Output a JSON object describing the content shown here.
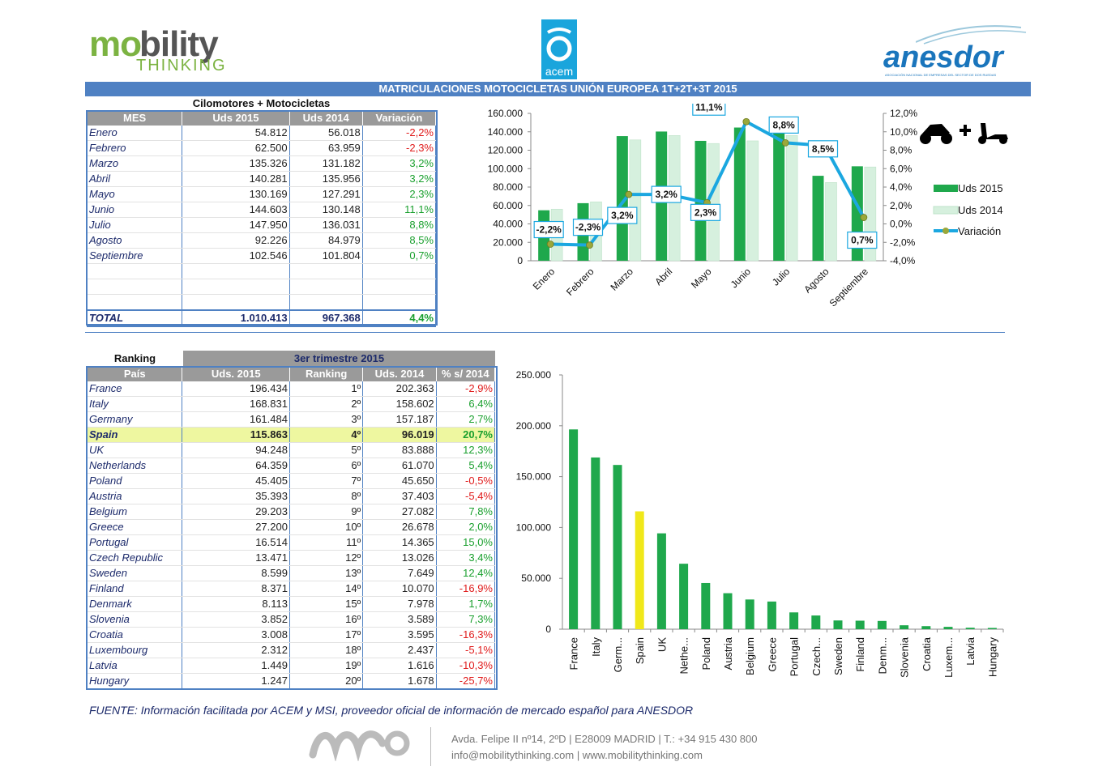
{
  "header": {
    "logo_left": {
      "part_a": "mo",
      "part_b": "bility",
      "line2": "THINKING"
    },
    "logo_center": {
      "text": "acem"
    },
    "logo_right": {
      "text": "anesdor",
      "subtitle": "ASOCIACIÓN NACIONAL DE EMPRESAS DEL SECTOR DE DOS RUEDAS"
    },
    "banner": "MATRICULACIONES MOTOCICLETAS UNIÓN EUROPEA 1T+2T+3T 2015"
  },
  "monthly_table": {
    "caption": "Cilomotores + Motocicletas",
    "headers": [
      "MES",
      "Uds 2015",
      "Uds 2014",
      "Variación"
    ],
    "rows": [
      {
        "mes": "Enero",
        "u2015": "54.812",
        "u2014": "56.018",
        "var": "-2,2%",
        "neg": true
      },
      {
        "mes": "Febrero",
        "u2015": "62.500",
        "u2014": "63.959",
        "var": "-2,3%",
        "neg": true
      },
      {
        "mes": "Marzo",
        "u2015": "135.326",
        "u2014": "131.182",
        "var": "3,2%",
        "neg": false
      },
      {
        "mes": "Abril",
        "u2015": "140.281",
        "u2014": "135.956",
        "var": "3,2%",
        "neg": false
      },
      {
        "mes": "Mayo",
        "u2015": "130.169",
        "u2014": "127.291",
        "var": "2,3%",
        "neg": false
      },
      {
        "mes": "Junio",
        "u2015": "144.603",
        "u2014": "130.148",
        "var": "11,1%",
        "neg": false
      },
      {
        "mes": "Julio",
        "u2015": "147.950",
        "u2014": "136.031",
        "var": "8,8%",
        "neg": false
      },
      {
        "mes": "Agosto",
        "u2015": "92.226",
        "u2014": "84.979",
        "var": "8,5%",
        "neg": false
      },
      {
        "mes": "Septiembre",
        "u2015": "102.546",
        "u2014": "101.804",
        "var": "0,7%",
        "neg": false
      }
    ],
    "total": {
      "label": "TOTAL",
      "u2015": "1.010.413",
      "u2014": "967.368",
      "var": "4,4%"
    }
  },
  "ranking_table": {
    "caption_left": "Ranking",
    "caption_right": "3er trimestre 2015",
    "headers": [
      "País",
      "Uds. 2015",
      "Ranking",
      "Uds. 2014",
      "% s/ 2014"
    ],
    "rows": [
      {
        "pais": "France",
        "u2015": "196.434",
        "rank": "1º",
        "u2014": "202.363",
        "pct": "-2,9%",
        "neg": true
      },
      {
        "pais": "Italy",
        "u2015": "168.831",
        "rank": "2º",
        "u2014": "158.602",
        "pct": "6,4%",
        "neg": false
      },
      {
        "pais": "Germany",
        "u2015": "161.484",
        "rank": "3º",
        "u2014": "157.187",
        "pct": "2,7%",
        "neg": false
      },
      {
        "pais": "Spain",
        "u2015": "115.863",
        "rank": "4º",
        "u2014": "96.019",
        "pct": "20,7%",
        "neg": false,
        "highlight": true
      },
      {
        "pais": "UK",
        "u2015": "94.248",
        "rank": "5º",
        "u2014": "83.888",
        "pct": "12,3%",
        "neg": false
      },
      {
        "pais": "Netherlands",
        "u2015": "64.359",
        "rank": "6º",
        "u2014": "61.070",
        "pct": "5,4%",
        "neg": false
      },
      {
        "pais": "Poland",
        "u2015": "45.405",
        "rank": "7º",
        "u2014": "45.650",
        "pct": "-0,5%",
        "neg": true
      },
      {
        "pais": "Austria",
        "u2015": "35.393",
        "rank": "8º",
        "u2014": "37.403",
        "pct": "-5,4%",
        "neg": true
      },
      {
        "pais": "Belgium",
        "u2015": "29.203",
        "rank": "9º",
        "u2014": "27.082",
        "pct": "7,8%",
        "neg": false
      },
      {
        "pais": "Greece",
        "u2015": "27.200",
        "rank": "10º",
        "u2014": "26.678",
        "pct": "2,0%",
        "neg": false
      },
      {
        "pais": "Portugal",
        "u2015": "16.514",
        "rank": "11º",
        "u2014": "14.365",
        "pct": "15,0%",
        "neg": false
      },
      {
        "pais": "Czech Republic",
        "u2015": "13.471",
        "rank": "12º",
        "u2014": "13.026",
        "pct": "3,4%",
        "neg": false
      },
      {
        "pais": "Sweden",
        "u2015": "8.599",
        "rank": "13º",
        "u2014": "7.649",
        "pct": "12,4%",
        "neg": false
      },
      {
        "pais": "Finland",
        "u2015": "8.371",
        "rank": "14º",
        "u2014": "10.070",
        "pct": "-16,9%",
        "neg": true
      },
      {
        "pais": "Denmark",
        "u2015": "8.113",
        "rank": "15º",
        "u2014": "7.978",
        "pct": "1,7%",
        "neg": false
      },
      {
        "pais": "Slovenia",
        "u2015": "3.852",
        "rank": "16º",
        "u2014": "3.589",
        "pct": "7,3%",
        "neg": false
      },
      {
        "pais": "Croatia",
        "u2015": "3.008",
        "rank": "17º",
        "u2014": "3.595",
        "pct": "-16,3%",
        "neg": true
      },
      {
        "pais": "Luxembourg",
        "u2015": "2.312",
        "rank": "18º",
        "u2014": "2.437",
        "pct": "-5,1%",
        "neg": true
      },
      {
        "pais": "Latvia",
        "u2015": "1.449",
        "rank": "19º",
        "u2014": "1.616",
        "pct": "-10,3%",
        "neg": true
      },
      {
        "pais": "Hungary",
        "u2015": "1.247",
        "rank": "20º",
        "u2014": "1.678",
        "pct": "-25,7%",
        "neg": true
      }
    ]
  },
  "chart_data": [
    {
      "type": "bar",
      "combo": "bar+line",
      "categories": [
        "Enero",
        "Febrero",
        "Marzo",
        "Abril",
        "Mayo",
        "Junio",
        "Julio",
        "Agosto",
        "Septiembre"
      ],
      "series": [
        {
          "name": "Uds 2015",
          "type": "bar",
          "values": [
            54812,
            62500,
            135326,
            140281,
            130169,
            144603,
            147950,
            92226,
            102546
          ]
        },
        {
          "name": "Uds 2014",
          "type": "bar",
          "values": [
            56018,
            63959,
            131182,
            135956,
            127291,
            130148,
            136031,
            84979,
            101804
          ]
        },
        {
          "name": "Variación",
          "type": "line",
          "axis": "right",
          "values": [
            -2.2,
            -2.3,
            3.2,
            3.2,
            2.3,
            11.1,
            8.8,
            8.5,
            0.7
          ],
          "labels": [
            "-2,2%",
            "-2,3%",
            "3,2%",
            "3,2%",
            "2,3%",
            "11,1%",
            "8,8%",
            "8,5%",
            "0,7%"
          ]
        }
      ],
      "ylim": [
        0,
        160000
      ],
      "y_ticks": [
        "0",
        "20.000",
        "40.000",
        "60.000",
        "80.000",
        "100.000",
        "120.000",
        "140.000",
        "160.000"
      ],
      "y2lim": [
        -4,
        12
      ],
      "y2_ticks": [
        "-4,0%",
        "-2,0%",
        "0,0%",
        "2,0%",
        "4,0%",
        "6,0%",
        "8,0%",
        "10,0%",
        "12,0%"
      ],
      "legend_position": "right",
      "colors": {
        "uds2015": "#1fa84c",
        "uds2014": "#d6f0de",
        "line": "#1ba7e0",
        "marker": "#9aa83a"
      }
    },
    {
      "type": "bar",
      "categories": [
        "France",
        "Italy",
        "Germ...",
        "Spain",
        "UK",
        "Nethe...",
        "Poland",
        "Austria",
        "Belgium",
        "Greece",
        "Portugal",
        "Czech...",
        "Sweden",
        "Finland",
        "Denm...",
        "Slovenia",
        "Croatia",
        "Luxem...",
        "Latvia",
        "Hungary"
      ],
      "values": [
        196434,
        168831,
        161484,
        115863,
        94248,
        64359,
        45405,
        35393,
        29203,
        27200,
        16514,
        13471,
        8599,
        8371,
        8113,
        3852,
        3008,
        2312,
        1449,
        1247
      ],
      "highlight_index": 3,
      "ylim": [
        0,
        250000
      ],
      "y_ticks": [
        "0",
        "50.000",
        "100.000",
        "150.000",
        "200.000",
        "250.000"
      ],
      "colors": {
        "bar": "#1fa84c",
        "highlight": "#f0e81a"
      }
    }
  ],
  "footer": {
    "source": "FUENTE: Información facilitada por ACEM y  MSI, proveedor oficial de información de mercado español para ANESDOR",
    "address": "Avda. Felipe II nº14, 2ºD  |  E28009 MADRID  |  T.: +34 915 430 800",
    "contact": "info@mobilitythinking.com | www.mobilitythinking.com"
  }
}
